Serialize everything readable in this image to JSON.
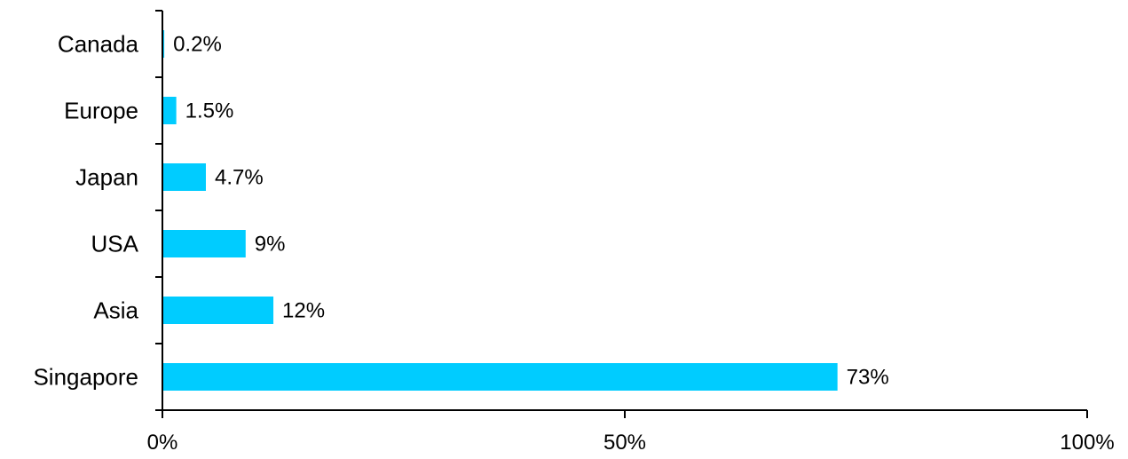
{
  "chart_data": {
    "type": "bar",
    "orientation": "horizontal",
    "categories": [
      "Canada",
      "Europe",
      "Japan",
      "USA",
      "Asia",
      "Singapore"
    ],
    "values": [
      0.2,
      1.5,
      4.7,
      9,
      12,
      73
    ],
    "value_labels": [
      "0.2%",
      "1.5%",
      "4.7%",
      "9%",
      "12%",
      "73%"
    ],
    "title": "",
    "xlabel": "",
    "ylabel": "",
    "xlim": [
      0,
      100
    ],
    "x_ticks": [
      0,
      50,
      100
    ],
    "x_tick_labels": [
      "0%",
      "50%",
      "100%"
    ],
    "grid": false,
    "legend": "none",
    "bar_color": "#00ccff",
    "axis_color": "#000000"
  }
}
